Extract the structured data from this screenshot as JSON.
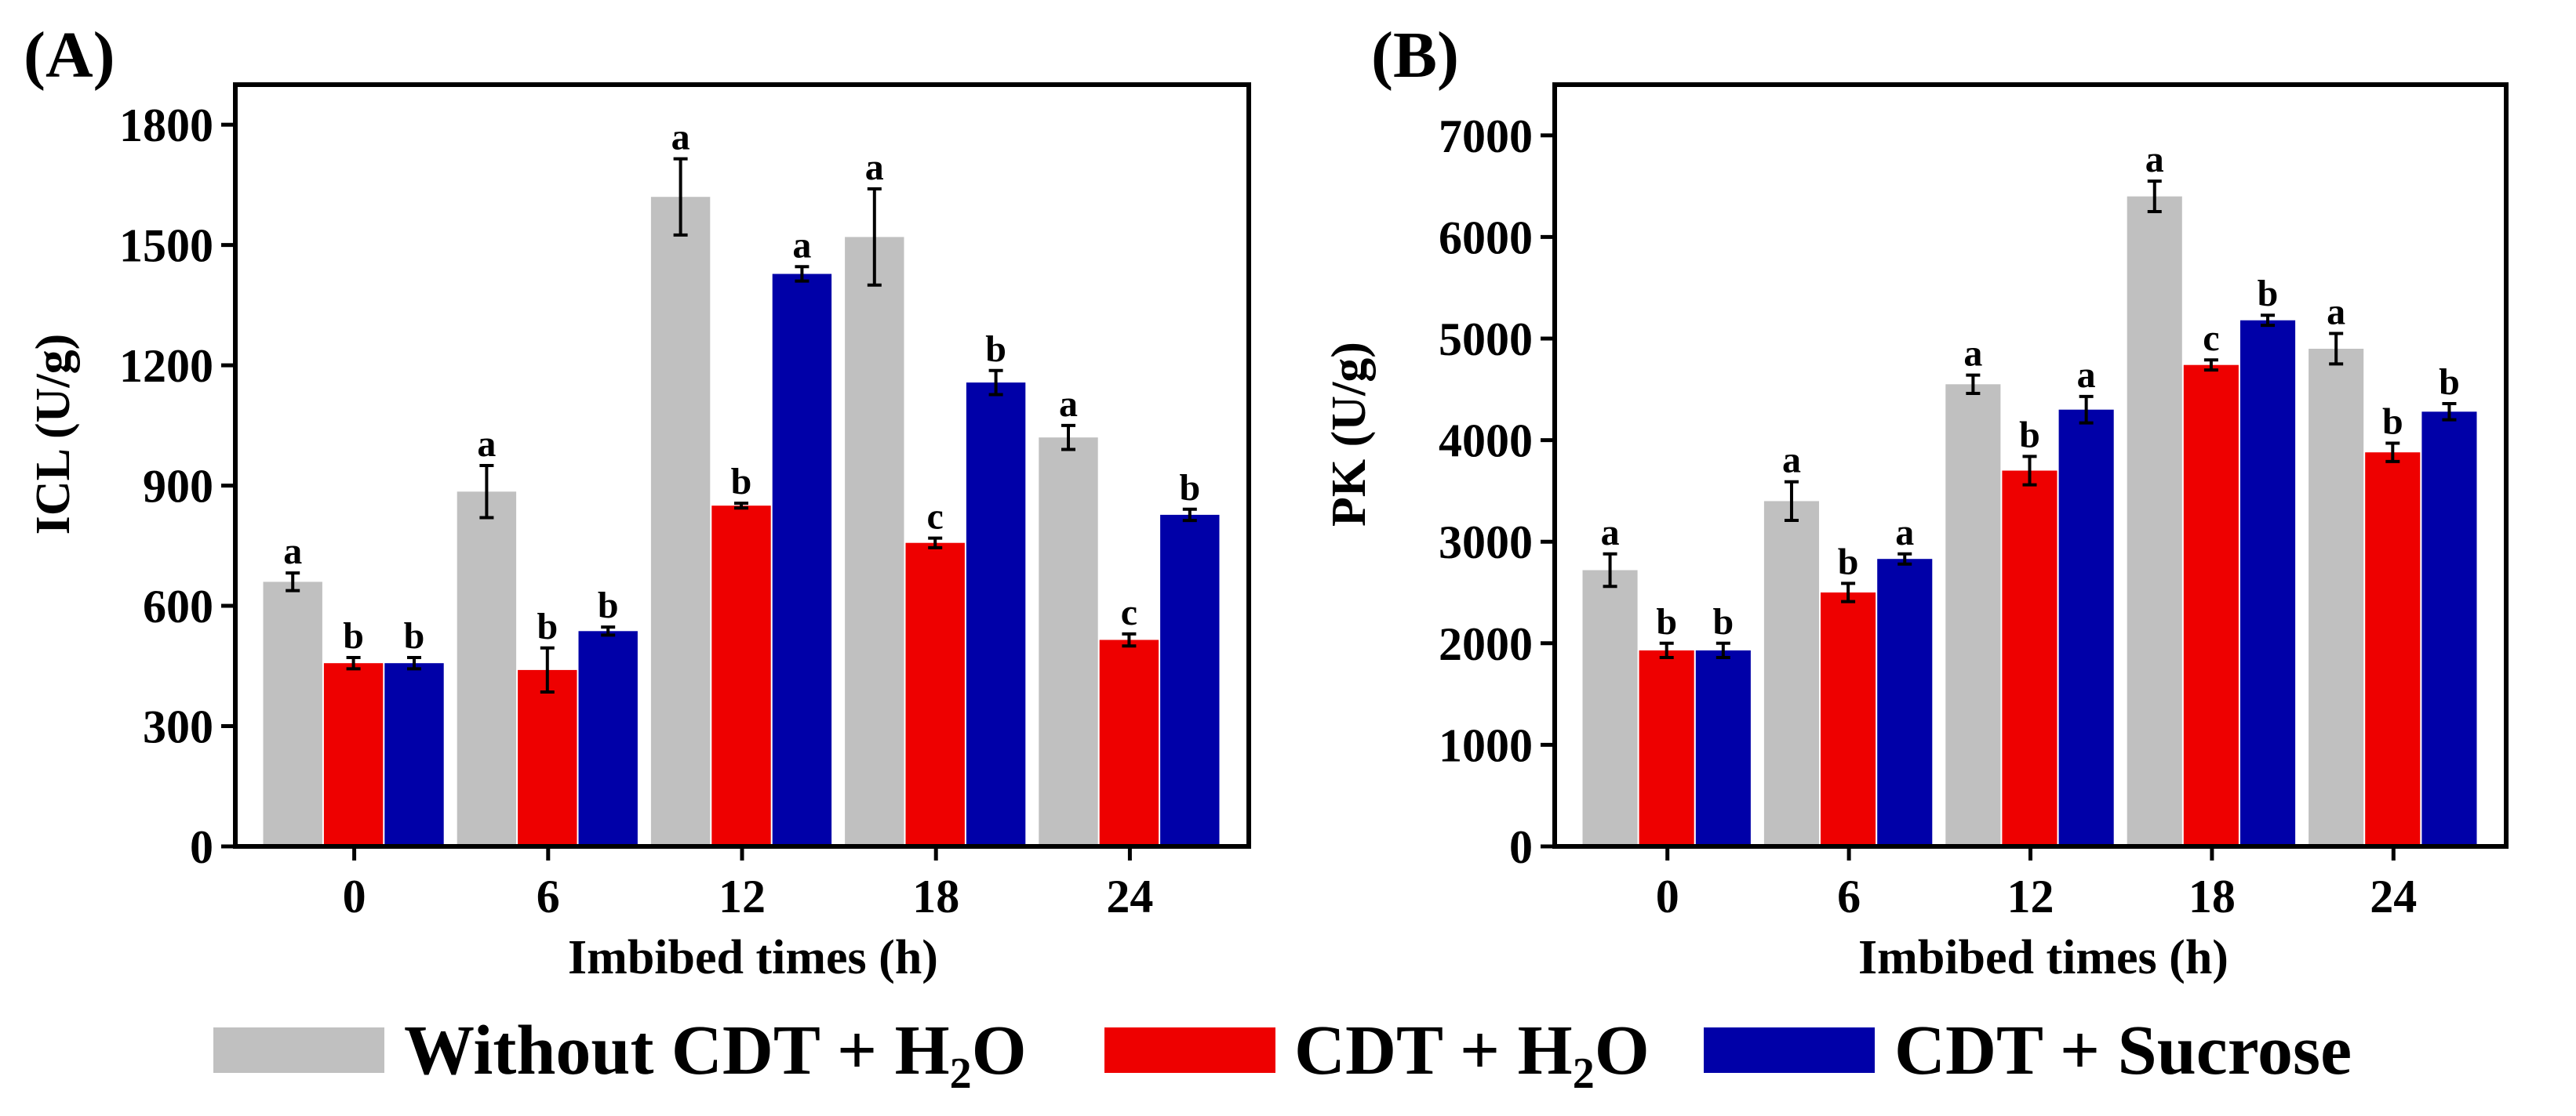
{
  "chart_data": [
    {
      "type": "bar",
      "panel_label": "(A)",
      "xlabel": "Imbibed times (h)",
      "ylabel": "ICL (U/g)",
      "categories": [
        "0",
        "6",
        "12",
        "18",
        "24"
      ],
      "ylim": [
        0,
        1900
      ],
      "yticks": [
        0,
        300,
        600,
        900,
        1200,
        1500,
        1800
      ],
      "series": [
        {
          "name": "Without CDT + H2O",
          "values": [
            660,
            885,
            1620,
            1520,
            1020
          ],
          "errors": [
            22,
            65,
            95,
            120,
            30
          ],
          "labels": [
            "a",
            "a",
            "a",
            "a",
            "a"
          ]
        },
        {
          "name": "CDT + H2O",
          "values": [
            457,
            440,
            850,
            757,
            515
          ],
          "errors": [
            14,
            55,
            6,
            12,
            15
          ],
          "labels": [
            "b",
            "b",
            "b",
            "c",
            "c"
          ]
        },
        {
          "name": "CDT + Sucrose",
          "values": [
            457,
            537,
            1428,
            1157,
            827
          ],
          "errors": [
            14,
            10,
            18,
            30,
            14
          ],
          "labels": [
            "b",
            "b",
            "a",
            "b",
            "b"
          ]
        }
      ]
    },
    {
      "type": "bar",
      "panel_label": "(B)",
      "xlabel": "Imbibed times (h)",
      "ylabel": "PK (U/g)",
      "categories": [
        "0",
        "6",
        "12",
        "18",
        "24"
      ],
      "ylim": [
        0,
        7500
      ],
      "yticks": [
        0,
        1000,
        2000,
        3000,
        4000,
        5000,
        6000,
        7000
      ],
      "series": [
        {
          "name": "Without CDT + H2O",
          "values": [
            2720,
            3400,
            4550,
            6400,
            4900
          ],
          "errors": [
            160,
            190,
            90,
            150,
            150
          ],
          "labels": [
            "a",
            "a",
            "a",
            "a",
            "a"
          ]
        },
        {
          "name": "CDT + H2O",
          "values": [
            1930,
            2500,
            3700,
            4740,
            3880
          ],
          "errors": [
            70,
            90,
            140,
            50,
            90
          ],
          "labels": [
            "b",
            "b",
            "b",
            "c",
            "b"
          ]
        },
        {
          "name": "CDT + Sucrose",
          "values": [
            1930,
            2830,
            4300,
            5180,
            4280
          ],
          "errors": [
            70,
            50,
            130,
            50,
            80
          ],
          "labels": [
            "b",
            "a",
            "a",
            "b",
            "b"
          ]
        }
      ]
    }
  ],
  "colors": {
    "series": [
      "#c0c0c0",
      "#ee0000",
      "#0000a8"
    ]
  },
  "legend": {
    "placement": "bottom",
    "items": [
      {
        "text": "Without CDT + H",
        "sub": "2",
        "tail": "O"
      },
      {
        "text": "CDT + H",
        "sub": "2",
        "tail": "O"
      },
      {
        "text": "CDT + Sucrose",
        "sub": "",
        "tail": ""
      }
    ]
  }
}
